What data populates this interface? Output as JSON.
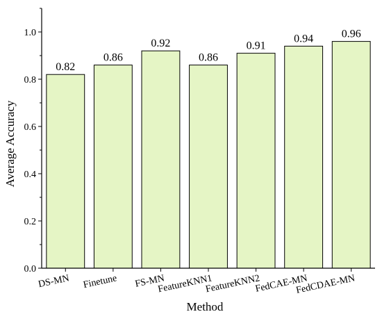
{
  "chart_data": {
    "type": "bar",
    "title": "",
    "xlabel": "Method",
    "ylabel": "Average Accuracy",
    "categories": [
      "DS-MN",
      "Finetune",
      "FS-MN",
      "FeatureKNN1",
      "FeatureKNN2",
      "FedCAE-MN",
      "FedCDAE-MN"
    ],
    "values": [
      0.82,
      0.86,
      0.92,
      0.86,
      0.91,
      0.94,
      0.96
    ],
    "data_labels": [
      "0.82",
      "0.86",
      "0.92",
      "0.86",
      "0.91",
      "0.94",
      "0.96"
    ],
    "yticks": [
      "0.0",
      "0.2",
      "0.4",
      "0.6",
      "0.8",
      "1.0"
    ],
    "ytick_values": [
      0,
      0.2,
      0.4,
      0.6,
      0.8,
      1.0
    ],
    "ylim": [
      0,
      1.1
    ],
    "grid": false,
    "legend": "none",
    "bar_color": "#e5f5c5",
    "edge_color": "#000000"
  }
}
